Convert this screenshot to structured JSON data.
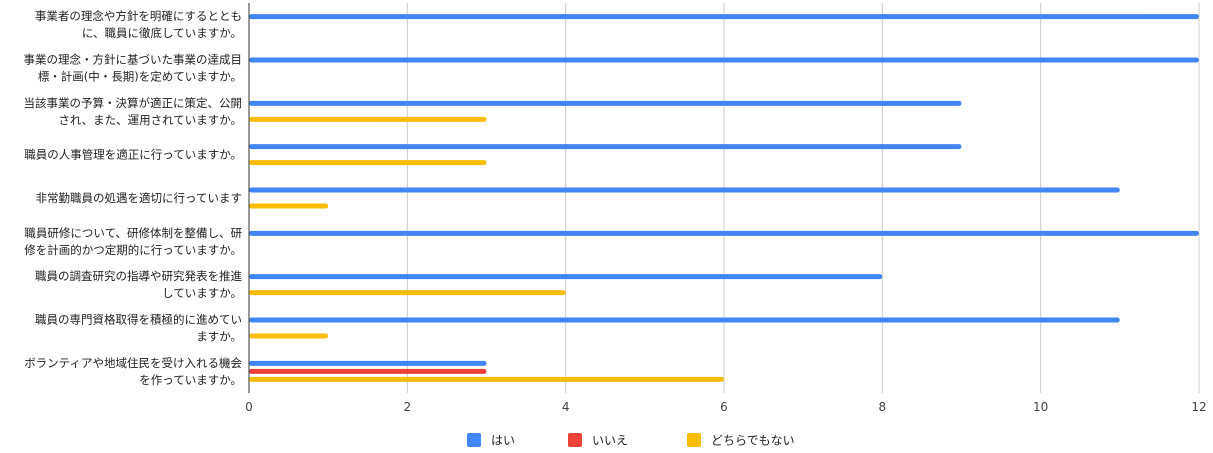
{
  "chart_data": {
    "type": "bar",
    "orientation": "horizontal",
    "categories": [
      [
        "事業者の理念や方針を明確にするととも",
        "に、職員に徹底していますか。"
      ],
      [
        "事業の理念・方針に基づいた事業の達成目",
        "標・計画(中・長期)を定めていますか。"
      ],
      [
        "当該事業の予算・決算が適正に策定、公開",
        "され、また、運用されていますか。"
      ],
      [
        "職員の人事管理を適正に行っていますか。"
      ],
      [
        "非常勤職員の処遇を適切に行っています"
      ],
      [
        "職員研修について、研修体制を整備し、研",
        "修を計画的かつ定期的に行っていますか。"
      ],
      [
        "職員の調査研究の指導や研究発表を推進",
        "していますか。"
      ],
      [
        "職員の専門資格取得を積極的に進めてい",
        "ますか。"
      ],
      [
        "ボランティアや地域住民を受け入れる機会",
        "を作っていますか。"
      ]
    ],
    "series": [
      {
        "name": "はい",
        "color": "#4285F4",
        "values": [
          12,
          12,
          9,
          9,
          11,
          12,
          8,
          11,
          3
        ]
      },
      {
        "name": "いいえ",
        "color": "#EA4335",
        "values": [
          0,
          0,
          0,
          0,
          0,
          0,
          0,
          0,
          3
        ]
      },
      {
        "name": "どちらでもない",
        "color": "#FBBC04",
        "values": [
          0,
          0,
          3,
          3,
          1,
          0,
          4,
          1,
          6
        ]
      }
    ],
    "xlim": [
      0,
      12
    ],
    "xticks": [
      0,
      2,
      4,
      6,
      8,
      10,
      12
    ],
    "grid": true,
    "legend_position": "bottom"
  }
}
